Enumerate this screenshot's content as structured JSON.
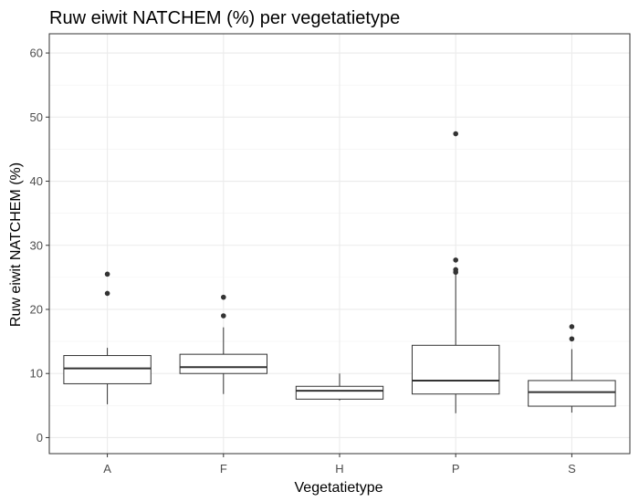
{
  "chart_data": {
    "type": "boxplot",
    "title": "Ruw eiwit NATCHEM (%) per vegetatietype",
    "xlabel": "Vegetatietype",
    "ylabel": "Ruw eiwit NATCHEM (%)",
    "ylim": [
      -2.5,
      63
    ],
    "yticks": [
      0,
      10,
      20,
      30,
      40,
      50,
      60
    ],
    "grid": true,
    "categories": [
      "A",
      "F",
      "H",
      "P",
      "S"
    ],
    "boxes": [
      {
        "category": "A",
        "whisker_low": 5.2,
        "q1": 8.4,
        "median": 10.8,
        "q3": 12.8,
        "whisker_high": 14.0,
        "outliers": [
          22.5,
          25.5
        ]
      },
      {
        "category": "F",
        "whisker_low": 6.8,
        "q1": 10.0,
        "median": 11.0,
        "q3": 13.0,
        "whisker_high": 17.2,
        "outliers": [
          19.0,
          21.9
        ]
      },
      {
        "category": "H",
        "whisker_low": 5.8,
        "q1": 6.0,
        "median": 7.3,
        "q3": 8.0,
        "whisker_high": 10.0,
        "outliers": []
      },
      {
        "category": "P",
        "whisker_low": 3.8,
        "q1": 6.8,
        "median": 8.9,
        "q3": 14.4,
        "whisker_high": 25.5,
        "outliers": [
          25.8,
          26.2,
          27.7,
          47.4
        ]
      },
      {
        "category": "S",
        "whisker_low": 3.9,
        "q1": 4.9,
        "median": 7.1,
        "q3": 8.9,
        "whisker_high": 13.8,
        "outliers": [
          15.4,
          17.3
        ]
      }
    ]
  }
}
